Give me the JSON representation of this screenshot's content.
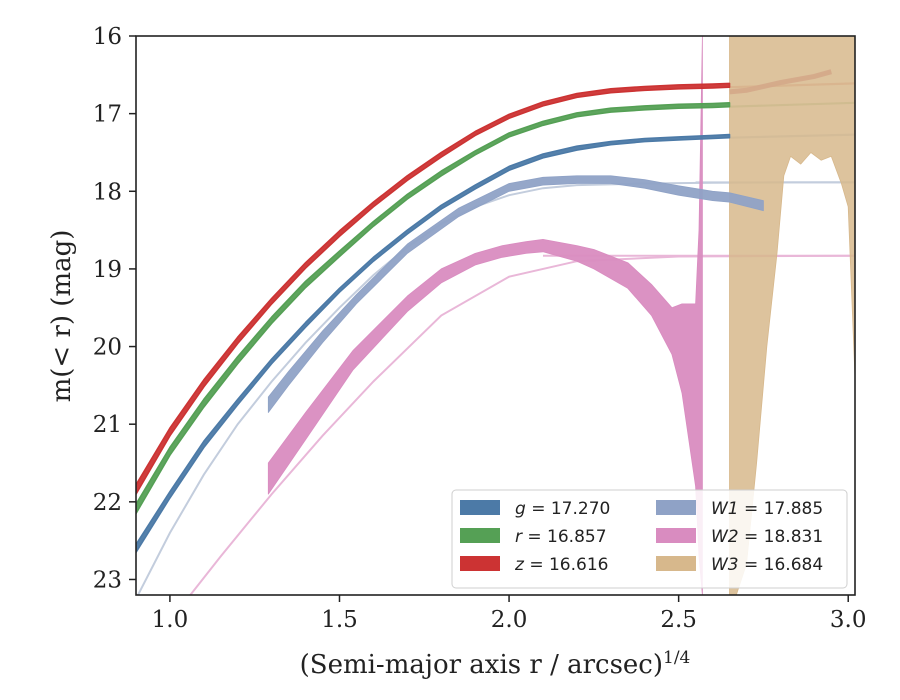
{
  "chart_data": {
    "type": "line",
    "title": "",
    "xlabel": "(Semi-major axis r / arcsec)",
    "xlabel_sup": "1/4",
    "ylabel": "m(< r) (mag)",
    "xlim": [
      0.9,
      3.02
    ],
    "ylim": [
      23.2,
      16.0
    ],
    "y_inverted": true,
    "grid": false,
    "legend_position": "lower-right",
    "x_ticks": [
      "1.0",
      "1.5",
      "2.0",
      "2.5",
      "3.0"
    ],
    "y_ticks": [
      "16",
      "17",
      "18",
      "19",
      "20",
      "21",
      "22",
      "23"
    ],
    "series": [
      {
        "name": "g = 17.270",
        "legend_symbol": "g",
        "legend_value": "= 17.270",
        "color": "#4c7aa7",
        "model_color": "#c2cfdf",
        "asymptote": 17.27,
        "x": [
          0.9,
          1.0,
          1.1,
          1.2,
          1.3,
          1.4,
          1.5,
          1.6,
          1.7,
          1.8,
          1.9,
          2.0,
          2.1,
          2.2,
          2.3,
          2.4,
          2.5,
          2.6,
          2.65
        ],
        "y_low": [
          22.65,
          21.95,
          21.3,
          20.75,
          20.22,
          19.75,
          19.3,
          18.9,
          18.55,
          18.23,
          17.97,
          17.73,
          17.57,
          17.47,
          17.4,
          17.36,
          17.34,
          17.32,
          17.31
        ],
        "y_high": [
          22.55,
          21.87,
          21.22,
          20.68,
          20.16,
          19.69,
          19.25,
          18.85,
          18.5,
          18.18,
          17.92,
          17.68,
          17.52,
          17.42,
          17.36,
          17.32,
          17.3,
          17.28,
          17.27
        ],
        "ext_x": [
          2.65,
          3.02
        ],
        "ext_y": [
          17.31,
          17.27
        ]
      },
      {
        "name": "r = 16.857",
        "legend_symbol": "r",
        "legend_value": "= 16.857",
        "color": "#55a055",
        "model_color": "#a9cfa9",
        "asymptote": 16.857,
        "x": [
          0.9,
          1.0,
          1.1,
          1.2,
          1.3,
          1.4,
          1.5,
          1.6,
          1.7,
          1.8,
          1.9,
          2.0,
          2.1,
          2.2,
          2.3,
          2.4,
          2.5,
          2.6,
          2.65
        ],
        "y_low": [
          22.15,
          21.4,
          20.78,
          20.22,
          19.7,
          19.24,
          18.84,
          18.45,
          18.1,
          17.8,
          17.53,
          17.3,
          17.15,
          17.04,
          16.98,
          16.95,
          16.93,
          16.92,
          16.91
        ],
        "y_high": [
          22.03,
          21.3,
          20.68,
          20.13,
          19.62,
          19.16,
          18.77,
          18.39,
          18.04,
          17.74,
          17.48,
          17.25,
          17.1,
          16.99,
          16.93,
          16.9,
          16.88,
          16.87,
          16.86
        ],
        "ext_x": [
          2.65,
          3.02
        ],
        "ext_y": [
          16.91,
          16.86
        ]
      },
      {
        "name": "z = 16.616",
        "legend_symbol": "z",
        "legend_value": "= 16.616",
        "color": "#cc3333",
        "model_color": "#e3a0a0",
        "asymptote": 16.616,
        "x": [
          0.9,
          1.0,
          1.1,
          1.2,
          1.3,
          1.4,
          1.5,
          1.6,
          1.7,
          1.8,
          1.9,
          2.0,
          2.1,
          2.2,
          2.3,
          2.4,
          2.5,
          2.6,
          2.65
        ],
        "y_low": [
          21.9,
          21.15,
          20.52,
          19.96,
          19.45,
          18.99,
          18.58,
          18.2,
          17.86,
          17.56,
          17.28,
          17.06,
          16.9,
          16.79,
          16.73,
          16.7,
          16.68,
          16.67,
          16.66
        ],
        "y_high": [
          21.78,
          21.05,
          20.43,
          19.88,
          19.38,
          18.92,
          18.51,
          18.14,
          17.8,
          17.5,
          17.23,
          17.01,
          16.85,
          16.74,
          16.68,
          16.65,
          16.63,
          16.62,
          16.61
        ],
        "ext_x": [
          2.65,
          3.02
        ],
        "ext_y": [
          16.66,
          16.61
        ]
      },
      {
        "name": "W1 = 17.885",
        "legend_symbol": "W1",
        "legend_value": "= 17.885",
        "color": "#8fa2c6",
        "model_color": "#c3cddd",
        "asymptote": 17.885,
        "x": [
          1.29,
          1.35,
          1.45,
          1.55,
          1.7,
          1.85,
          2.0,
          2.1,
          2.2,
          2.3,
          2.4,
          2.5,
          2.6,
          2.65,
          2.75
        ],
        "y_low": [
          20.85,
          20.5,
          19.95,
          19.45,
          18.8,
          18.33,
          18.0,
          17.92,
          17.9,
          17.9,
          17.96,
          18.05,
          18.12,
          18.14,
          18.25
        ],
        "y_high": [
          20.65,
          20.32,
          19.8,
          19.33,
          18.68,
          18.22,
          17.9,
          17.82,
          17.8,
          17.8,
          17.85,
          17.93,
          18.0,
          18.02,
          18.12
        ],
        "model_x": [
          0.9,
          1.0,
          1.1,
          1.2,
          1.3,
          1.4,
          1.5,
          1.6,
          1.7,
          1.8,
          1.9,
          2.0,
          2.1,
          2.2,
          2.4,
          2.6,
          2.8,
          3.02
        ],
        "model_y": [
          23.25,
          22.4,
          21.65,
          21.0,
          20.45,
          19.95,
          19.5,
          19.08,
          18.72,
          18.42,
          18.2,
          18.05,
          17.96,
          17.92,
          17.9,
          17.89,
          17.886,
          17.885
        ]
      },
      {
        "name": "W2 = 18.831",
        "legend_symbol": "W2",
        "legend_value": "= 18.831",
        "color": "#d98cc0",
        "model_color": "#e9b7d8",
        "asymptote": 18.831,
        "x": [
          1.29,
          1.4,
          1.54,
          1.7,
          1.8,
          1.9,
          1.98,
          2.05,
          2.1,
          2.2,
          2.25,
          2.35,
          2.42,
          2.48,
          2.51,
          2.55,
          2.56,
          2.57
        ],
        "y_low": [
          21.9,
          21.2,
          20.3,
          19.55,
          19.18,
          18.95,
          18.85,
          18.8,
          18.78,
          18.9,
          19.0,
          19.25,
          19.6,
          20.1,
          20.6,
          21.8,
          22.7,
          23.2
        ],
        "y_high": [
          21.5,
          20.85,
          20.05,
          19.35,
          19.0,
          18.8,
          18.7,
          18.65,
          18.62,
          18.7,
          18.75,
          18.92,
          19.2,
          19.5,
          19.45,
          19.45,
          18.5,
          16.0
        ],
        "model_x": [
          1.06,
          1.15,
          1.3,
          1.45,
          1.6,
          1.8,
          2.0,
          2.2,
          2.5,
          3.02
        ],
        "model_y": [
          23.2,
          22.7,
          21.9,
          21.15,
          20.45,
          19.6,
          19.1,
          18.9,
          18.84,
          18.831
        ]
      },
      {
        "name": "W3 = 16.684",
        "legend_symbol": "W3",
        "legend_value": "= 16.684",
        "color": "#d7b88c",
        "model_color": "#e6d2b3",
        "asymptote": 16.684,
        "x": [
          2.65,
          2.67,
          2.7,
          2.73,
          2.76,
          2.79,
          2.81,
          2.83,
          2.86,
          2.89,
          2.92,
          2.95,
          2.98,
          3.0,
          3.02
        ],
        "y_low": [
          23.2,
          23.2,
          22.8,
          21.5,
          20.0,
          18.8,
          17.8,
          17.55,
          17.65,
          17.5,
          17.6,
          17.55,
          17.9,
          18.2,
          20.4
        ],
        "y_high": [
          16.0,
          16.0,
          16.0,
          16.0,
          16.0,
          16.0,
          16.0,
          16.0,
          16.0,
          16.0,
          16.0,
          16.0,
          16.0,
          16.0,
          16.0
        ],
        "model_x": [
          2.65,
          2.7,
          2.8,
          2.9,
          2.95
        ],
        "model_y": [
          16.72,
          16.7,
          16.6,
          16.52,
          16.46
        ]
      }
    ]
  }
}
